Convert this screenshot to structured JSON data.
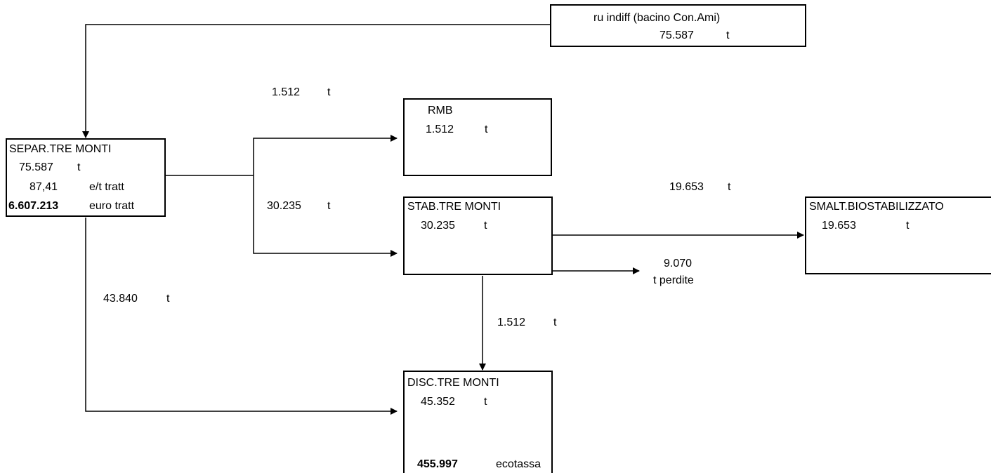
{
  "source_box": {
    "title": "ru indiff (bacino Con.Ami)",
    "value": "75.587",
    "unit": "t"
  },
  "separ": {
    "title": "SEPAR.TRE MONTI",
    "value": "75.587",
    "unit": "t",
    "rate_value": "87,41",
    "rate_unit": "e/t tratt",
    "cost_value": "6.607.213",
    "cost_unit": "euro tratt"
  },
  "rmb": {
    "title": "RMB",
    "value": "1.512",
    "unit": "t"
  },
  "stab": {
    "title": "STAB.TRE MONTI",
    "value": "30.235",
    "unit": "t"
  },
  "smalt": {
    "title": "SMALT.BIOSTABILIZZATO",
    "value": "19.653",
    "unit": "t"
  },
  "disc": {
    "title": "DISC.TRE MONTI",
    "value": "45.352",
    "unit": "t",
    "tax_value": "455.997",
    "tax_unit": "ecotassa"
  },
  "flows": {
    "to_rmb": {
      "value": "1.512",
      "unit": "t"
    },
    "to_stab": {
      "value": "30.235",
      "unit": "t"
    },
    "to_disc": {
      "value": "43.840",
      "unit": "t"
    },
    "stab_to_smalt": {
      "value": "19.653",
      "unit": "t"
    },
    "stab_losses": {
      "value": "9.070",
      "unit": "t perdite"
    },
    "stab_to_disc": {
      "value": "1.512",
      "unit": "t"
    }
  }
}
